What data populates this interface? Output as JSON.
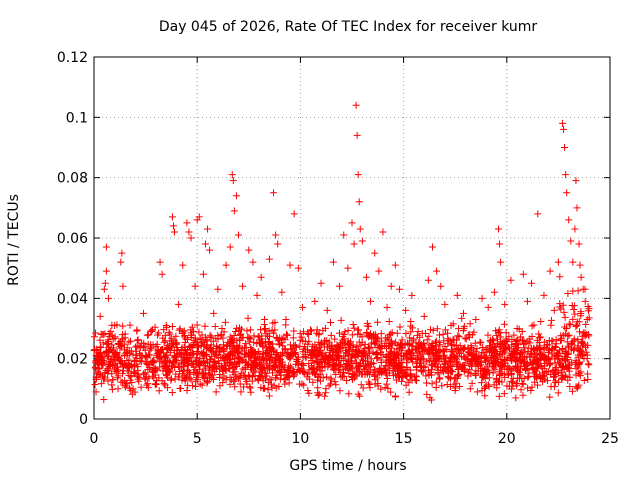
{
  "chart_data": {
    "type": "scatter",
    "title": "Day 045 of 2026, Rate Of TEC Index for receiver kumr",
    "xlabel": "GPS time / hours",
    "ylabel": "ROTI / TECUs",
    "xlim": [
      0,
      25
    ],
    "ylim": [
      0,
      0.12
    ],
    "xticks": [
      0,
      5,
      10,
      15,
      20,
      25
    ],
    "yticks": [
      0,
      0.02,
      0.04,
      0.06,
      0.08,
      0.1,
      0.12
    ],
    "xtick_labels": [
      "0",
      "5",
      "10",
      "15",
      "20",
      "25"
    ],
    "ytick_labels": [
      "0",
      "0.02",
      "0.04",
      "0.06",
      "0.08",
      "0.1",
      "0.12"
    ],
    "grid": true,
    "marker": "+",
    "color": "#ff0000",
    "series": [
      {
        "name": "ROTI",
        "points": [
          [
            0.1,
            0.009
          ],
          [
            0.2,
            0.015
          ],
          [
            0.3,
            0.022
          ],
          [
            0.3,
            0.034
          ],
          [
            0.4,
            0.028
          ],
          [
            0.5,
            0.043
          ],
          [
            0.55,
            0.045
          ],
          [
            0.6,
            0.057
          ],
          [
            0.6,
            0.049
          ],
          [
            0.7,
            0.04
          ],
          [
            0.8,
            0.018
          ],
          [
            1.0,
            0.031
          ],
          [
            1.2,
            0.025
          ],
          [
            1.3,
            0.052
          ],
          [
            1.35,
            0.055
          ],
          [
            1.4,
            0.044
          ],
          [
            1.6,
            0.021
          ],
          [
            1.8,
            0.014
          ],
          [
            2.1,
            0.026
          ],
          [
            2.4,
            0.035
          ],
          [
            2.6,
            0.018
          ],
          [
            2.8,
            0.029
          ],
          [
            3.0,
            0.024
          ],
          [
            3.2,
            0.052
          ],
          [
            3.3,
            0.048
          ],
          [
            3.5,
            0.031
          ],
          [
            3.7,
            0.022
          ],
          [
            3.8,
            0.067
          ],
          [
            3.85,
            0.064
          ],
          [
            3.9,
            0.062
          ],
          [
            4.1,
            0.038
          ],
          [
            4.3,
            0.051
          ],
          [
            4.5,
            0.065
          ],
          [
            4.6,
            0.062
          ],
          [
            4.7,
            0.06
          ],
          [
            4.9,
            0.044
          ],
          [
            5.0,
            0.066
          ],
          [
            5.1,
            0.067
          ],
          [
            5.3,
            0.048
          ],
          [
            5.4,
            0.058
          ],
          [
            5.5,
            0.063
          ],
          [
            5.6,
            0.056
          ],
          [
            5.8,
            0.035
          ],
          [
            6.0,
            0.043
          ],
          [
            6.2,
            0.03
          ],
          [
            6.4,
            0.051
          ],
          [
            6.6,
            0.057
          ],
          [
            6.7,
            0.081
          ],
          [
            6.75,
            0.079
          ],
          [
            6.8,
            0.069
          ],
          [
            6.9,
            0.074
          ],
          [
            7.0,
            0.061
          ],
          [
            7.2,
            0.044
          ],
          [
            7.5,
            0.056
          ],
          [
            7.7,
            0.052
          ],
          [
            7.9,
            0.041
          ],
          [
            8.1,
            0.047
          ],
          [
            8.3,
            0.03
          ],
          [
            8.5,
            0.053
          ],
          [
            8.7,
            0.075
          ],
          [
            8.8,
            0.061
          ],
          [
            8.9,
            0.058
          ],
          [
            9.1,
            0.042
          ],
          [
            9.3,
            0.033
          ],
          [
            9.5,
            0.051
          ],
          [
            9.7,
            0.068
          ],
          [
            9.9,
            0.05
          ],
          [
            10.1,
            0.037
          ],
          [
            10.4,
            0.028
          ],
          [
            10.7,
            0.039
          ],
          [
            11.0,
            0.045
          ],
          [
            11.3,
            0.036
          ],
          [
            11.6,
            0.052
          ],
          [
            11.9,
            0.044
          ],
          [
            12.1,
            0.061
          ],
          [
            12.3,
            0.05
          ],
          [
            12.5,
            0.065
          ],
          [
            12.6,
            0.058
          ],
          [
            12.7,
            0.104
          ],
          [
            12.75,
            0.094
          ],
          [
            12.8,
            0.081
          ],
          [
            12.85,
            0.072
          ],
          [
            12.9,
            0.063
          ],
          [
            13.0,
            0.059
          ],
          [
            13.2,
            0.047
          ],
          [
            13.4,
            0.039
          ],
          [
            13.6,
            0.055
          ],
          [
            13.8,
            0.049
          ],
          [
            14.0,
            0.062
          ],
          [
            14.2,
            0.037
          ],
          [
            14.4,
            0.044
          ],
          [
            14.6,
            0.051
          ],
          [
            14.8,
            0.043
          ],
          [
            15.1,
            0.036
          ],
          [
            15.4,
            0.041
          ],
          [
            15.7,
            0.029
          ],
          [
            16.0,
            0.034
          ],
          [
            16.2,
            0.046
          ],
          [
            16.4,
            0.057
          ],
          [
            16.6,
            0.049
          ],
          [
            16.8,
            0.044
          ],
          [
            17.0,
            0.038
          ],
          [
            17.3,
            0.031
          ],
          [
            17.6,
            0.041
          ],
          [
            17.9,
            0.035
          ],
          [
            18.2,
            0.028
          ],
          [
            18.5,
            0.033
          ],
          [
            18.8,
            0.04
          ],
          [
            19.1,
            0.037
          ],
          [
            19.4,
            0.042
          ],
          [
            19.6,
            0.063
          ],
          [
            19.65,
            0.058
          ],
          [
            19.7,
            0.052
          ],
          [
            19.9,
            0.038
          ],
          [
            20.2,
            0.046
          ],
          [
            20.5,
            0.03
          ],
          [
            20.8,
            0.048
          ],
          [
            21.0,
            0.039
          ],
          [
            21.2,
            0.045
          ],
          [
            21.5,
            0.068
          ],
          [
            21.8,
            0.041
          ],
          [
            22.1,
            0.049
          ],
          [
            22.3,
            0.036
          ],
          [
            22.5,
            0.052
          ],
          [
            22.7,
            0.098
          ],
          [
            22.75,
            0.096
          ],
          [
            22.8,
            0.09
          ],
          [
            22.85,
            0.081
          ],
          [
            22.9,
            0.075
          ],
          [
            23.0,
            0.066
          ],
          [
            23.1,
            0.059
          ],
          [
            23.2,
            0.052
          ],
          [
            23.3,
            0.063
          ],
          [
            23.35,
            0.079
          ],
          [
            23.4,
            0.07
          ],
          [
            23.5,
            0.058
          ],
          [
            23.55,
            0.051
          ],
          [
            23.6,
            0.047
          ],
          [
            23.7,
            0.043
          ],
          [
            23.8,
            0.039
          ],
          [
            23.9,
            0.033
          ],
          [
            23.95,
            0.028
          ]
        ],
        "dense_band": {
          "x_range": [
            0,
            24
          ],
          "y_range": [
            0.005,
            0.035
          ],
          "typical": 0.015
        }
      }
    ]
  }
}
